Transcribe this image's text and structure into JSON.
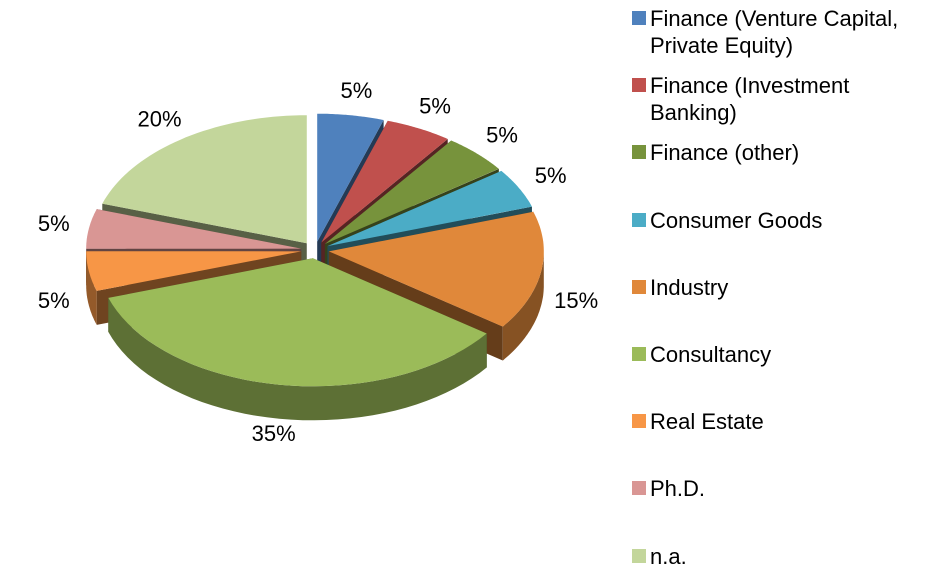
{
  "chart_data": {
    "type": "pie3d",
    "categories": [
      "Finance (Venture Capital, Private Equity)",
      "Finance (Investment Banking)",
      "Finance (other)",
      "Consumer Goods",
      "Industry",
      "Consultancy",
      "Real Estate",
      "Ph.D.",
      "n.a."
    ],
    "values": [
      5,
      5,
      5,
      5,
      15,
      35,
      5,
      5,
      20
    ],
    "value_labels": [
      "5%",
      "5%",
      "5%",
      "5%",
      "15%",
      "35%",
      "5%",
      "5%",
      "20%"
    ],
    "colors": [
      "#4f81bd",
      "#c0504d",
      "#77933c",
      "#4bacc6",
      "#e0883a",
      "#9bbb59",
      "#f79646",
      "#d99694",
      "#c3d69b"
    ],
    "legend": "right"
  }
}
